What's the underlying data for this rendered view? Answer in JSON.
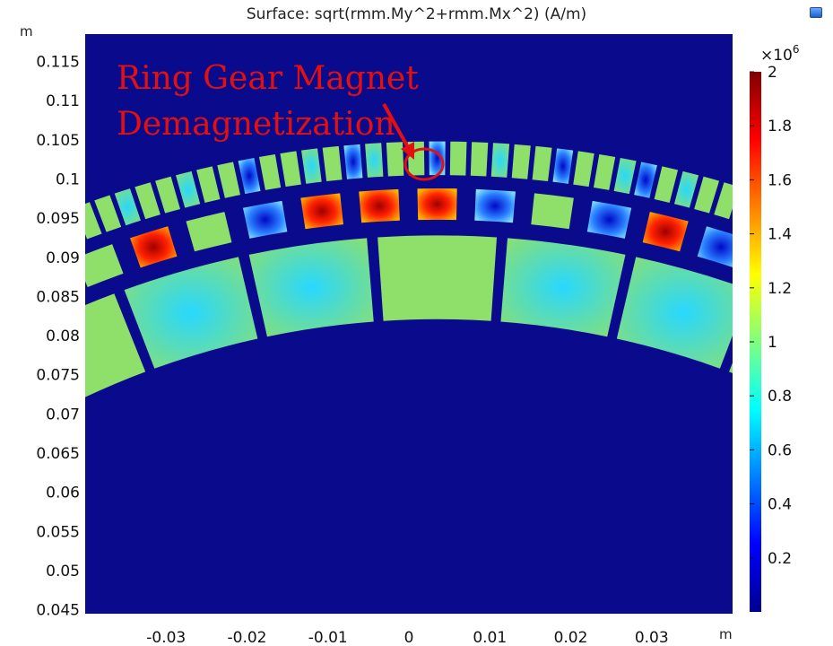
{
  "title": "Surface: sqrt(rmm.My^2+rmm.Mx^2) (A/m)",
  "x_unit": "m",
  "y_unit": "m",
  "chart_data": {
    "type": "heatmap",
    "title": "Surface: sqrt(rmm.My^2+rmm.Mx^2) (A/m)",
    "xlabel": "m",
    "ylabel": "m",
    "xlim": [
      -0.04,
      0.04
    ],
    "ylim": [
      0.0445,
      0.1185
    ],
    "x_ticks": [
      "-0.03",
      "-0.02",
      "-0.01",
      "0",
      "0.01",
      "0.02",
      "0.03"
    ],
    "x_tick_values": [
      -0.03,
      -0.02,
      -0.01,
      0,
      0.01,
      0.02,
      0.03
    ],
    "y_ticks": [
      "0.045",
      "0.05",
      "0.055",
      "0.06",
      "0.065",
      "0.07",
      "0.075",
      "0.08",
      "0.085",
      "0.09",
      "0.095",
      "0.1",
      "0.105",
      "0.11",
      "0.115"
    ],
    "y_tick_values": [
      0.045,
      0.05,
      0.055,
      0.06,
      0.065,
      0.07,
      0.075,
      0.08,
      0.085,
      0.09,
      0.095,
      0.1,
      0.105,
      0.11,
      0.115
    ],
    "colorbar": {
      "multiplier": "×10",
      "exponent": "6",
      "range": [
        0,
        2
      ],
      "ticks": [
        "2",
        "1.8",
        "1.6",
        "1.4",
        "1.2",
        "1",
        "0.8",
        "0.6",
        "0.4",
        "0.2"
      ],
      "tick_values": [
        2,
        1.8,
        1.6,
        1.4,
        1.2,
        1,
        0.8,
        0.6,
        0.4,
        0.2
      ],
      "colormap": "jet"
    },
    "annotation": {
      "lines": [
        "Ring Gear Magnet",
        "Demagnetization"
      ],
      "color": "#e41010",
      "target": [
        0.003,
        0.1025
      ]
    }
  },
  "colors": {
    "background": "#0a0a8c",
    "segment_field": "#8ee06a",
    "annotation": "#e41010"
  }
}
